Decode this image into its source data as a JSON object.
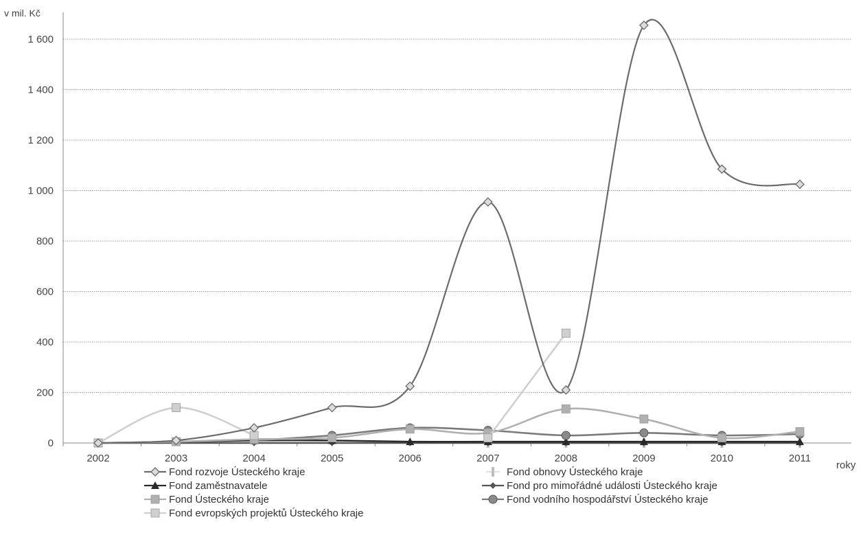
{
  "chart_data": {
    "type": "line",
    "ylabel": "v mil. Kč",
    "xlabel": "roky",
    "ylim": [
      0,
      1700
    ],
    "yticks": [
      0,
      200,
      400,
      600,
      800,
      1000,
      1200,
      1400,
      1600
    ],
    "ytick_labels": [
      "0",
      "200",
      "400",
      "600",
      "800",
      "1 000",
      "1 200",
      "1 400",
      "1 600"
    ],
    "categories": [
      "2002",
      "2003",
      "2004",
      "2005",
      "2006",
      "2007",
      "2008",
      "2009",
      "2010",
      "2011"
    ],
    "grid": true,
    "smooth": true,
    "legend_position": "bottom",
    "series": [
      {
        "name": "Fond rozvoje Ústeckého kraje",
        "color": "#6b6b6b",
        "marker": "diamond",
        "values": [
          0,
          10,
          60,
          140,
          225,
          955,
          210,
          1655,
          1085,
          1025
        ]
      },
      {
        "name": "Fond zaměstnavatele",
        "color": "#2a2a2a",
        "marker": "triangle",
        "values": [
          0,
          5,
          10,
          10,
          5,
          5,
          5,
          5,
          5,
          5
        ]
      },
      {
        "name": "Fond Ústeckého kraje",
        "color": "#b0b0b0",
        "marker": "square",
        "values": [
          0,
          5,
          15,
          20,
          55,
          40,
          135,
          95,
          20,
          45
        ]
      },
      {
        "name": "Fond evropských projektů Ústeckého kraje",
        "color": "#cfcfcf",
        "marker": "square",
        "values": [
          0,
          140,
          30,
          null,
          null,
          20,
          435,
          null,
          null,
          null
        ]
      },
      {
        "name": "Fond obnovy Ústeckého kraje",
        "color": "#bdbdbd",
        "marker": "bar",
        "values": [
          null,
          null,
          null,
          null,
          null,
          0,
          0,
          0,
          0,
          0
        ]
      },
      {
        "name": "Fond pro mimořádné události Ústeckého kraje",
        "color": "#555555",
        "marker": "small-diamond",
        "values": [
          0,
          0,
          0,
          0,
          0,
          0,
          0,
          0,
          0,
          0
        ]
      },
      {
        "name": "Fond vodního hospodářství Ústeckého kraje",
        "color": "#7a7a7a",
        "marker": "circle",
        "values": [
          null,
          null,
          10,
          30,
          60,
          50,
          30,
          40,
          30,
          35
        ]
      }
    ]
  }
}
